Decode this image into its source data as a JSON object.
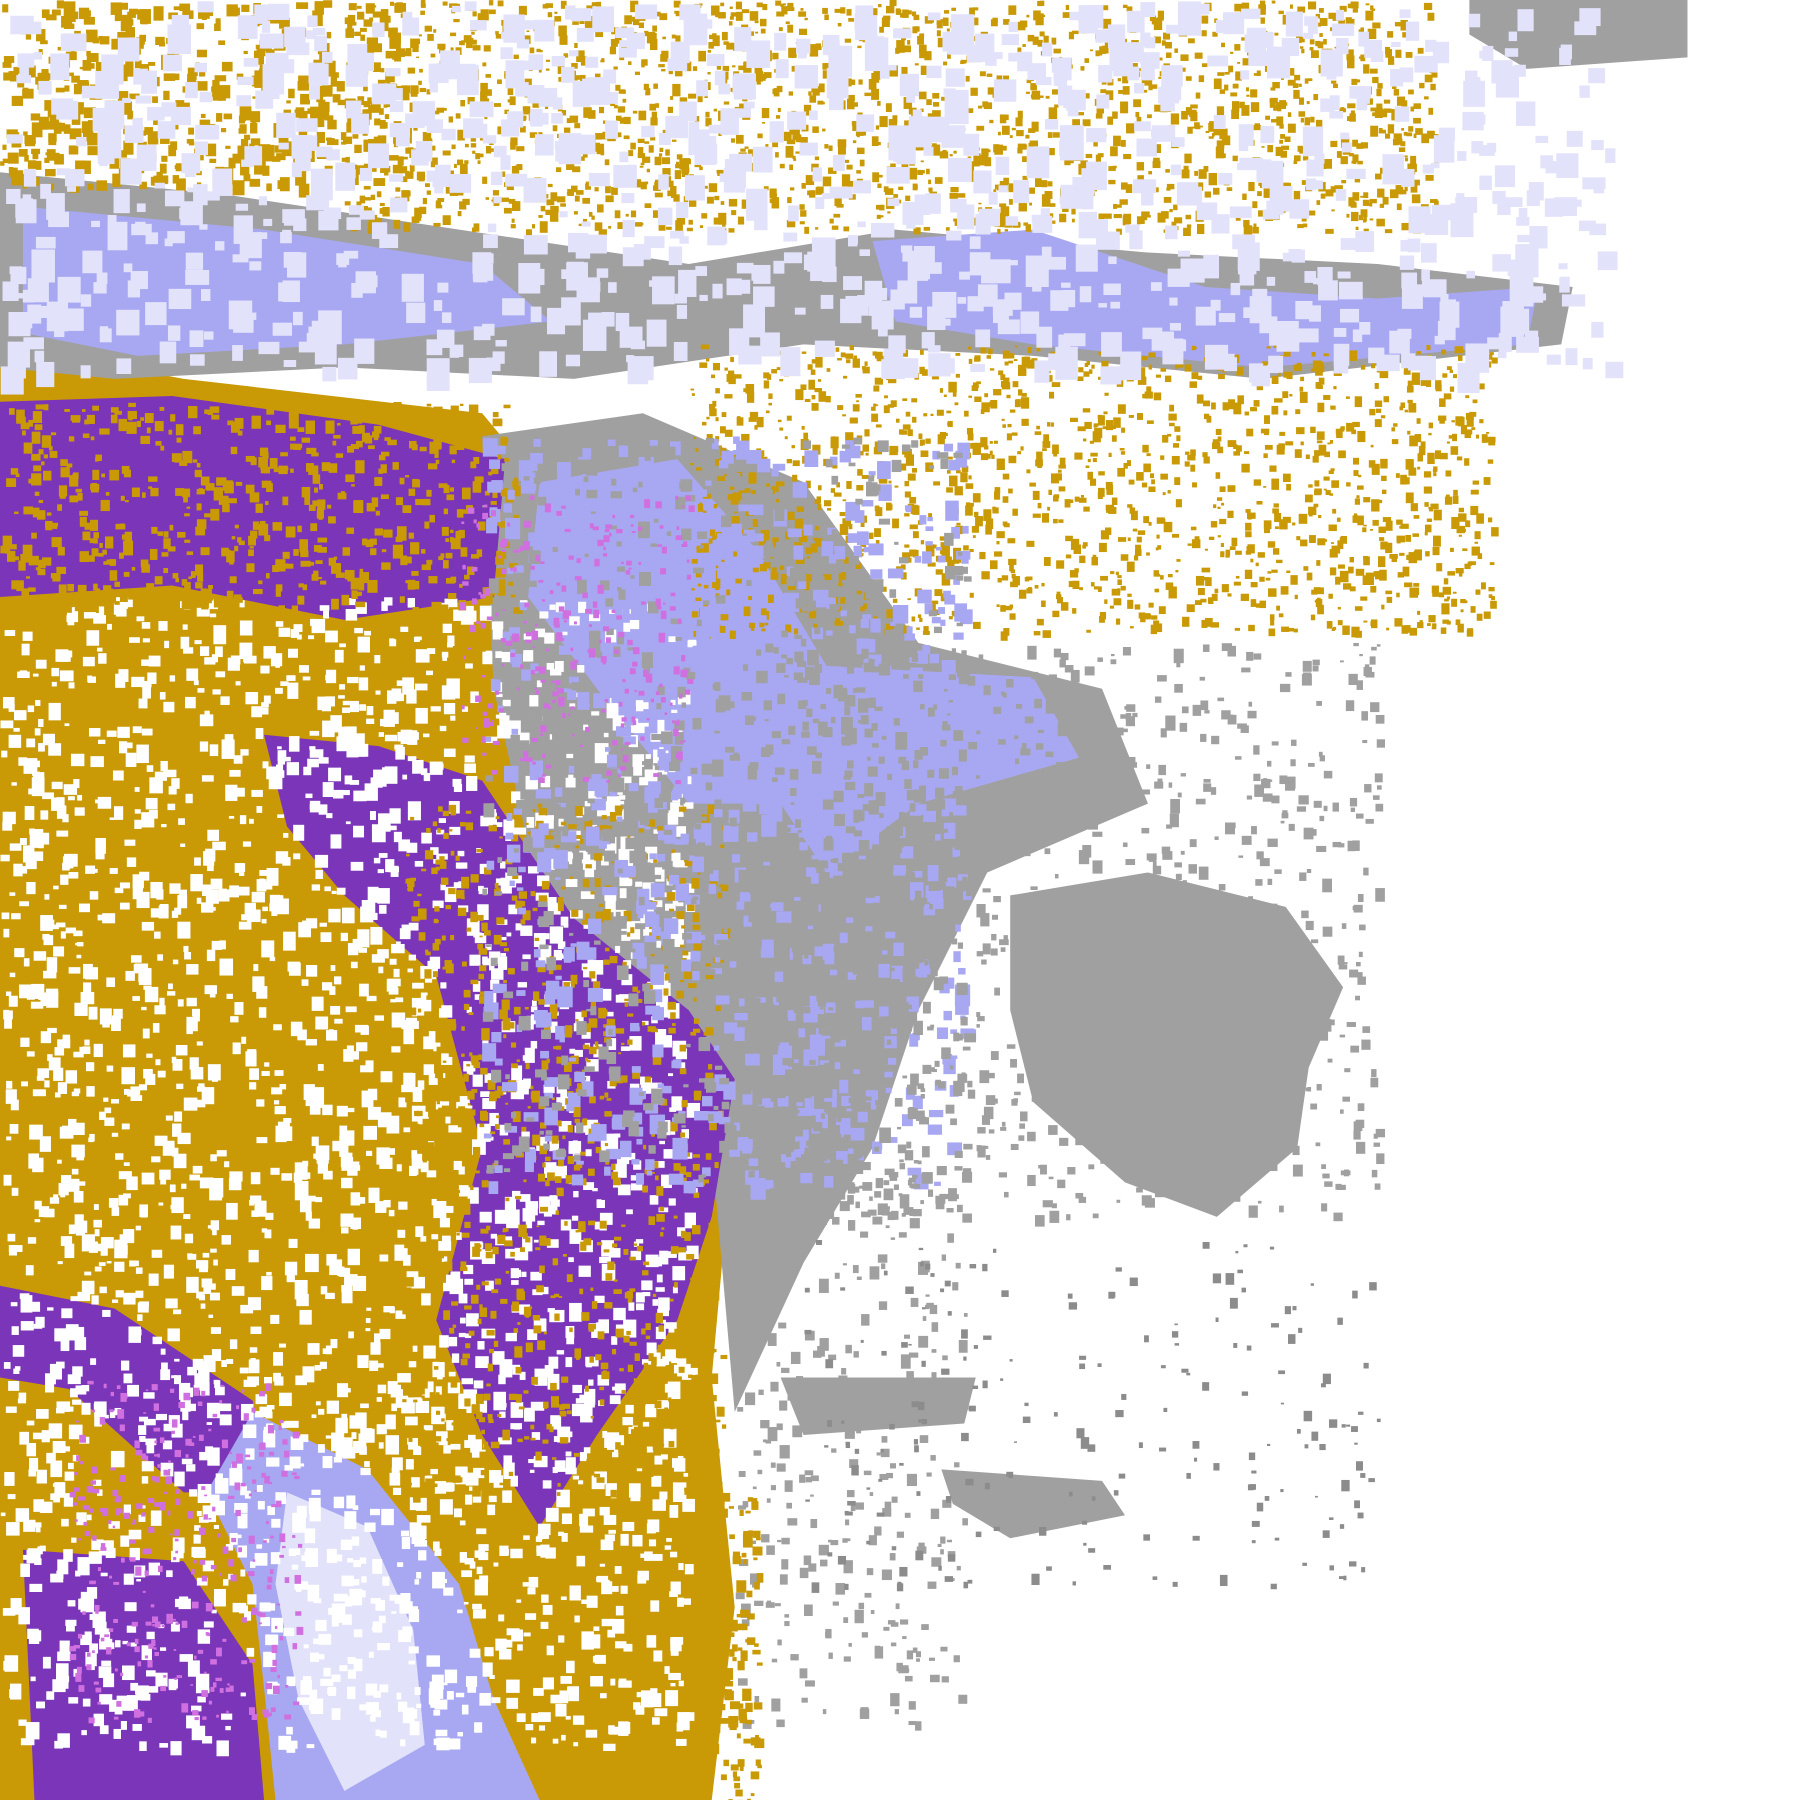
{
  "map": {
    "type": "satellite cloud classification image",
    "colors": {
      "background": "#ffffff",
      "gold": "#c99a06",
      "purple": "#7b35b8",
      "magenta": "#d070e0",
      "lavender": "#a8a8f2",
      "light_lavender": "#e2e2fb",
      "gray": "#a0a0a0",
      "dark_gray": "#8c8c8c"
    }
  }
}
